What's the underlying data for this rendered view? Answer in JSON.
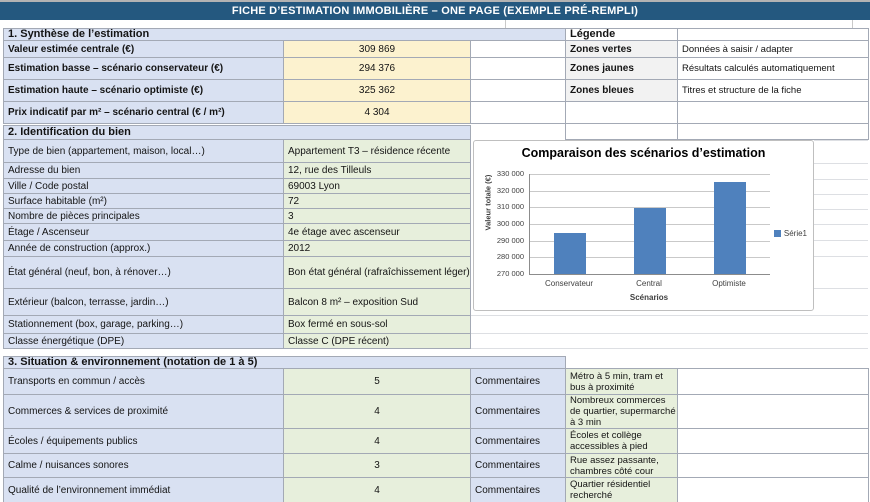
{
  "title_bar": "FICHE D’ESTIMATION IMMOBILIÈRE – ONE PAGE (EXEMPLE PRÉ-REMPLI)",
  "colors": {
    "title_bar_bg": "#24587F",
    "blue_zone": "#D9E1F2",
    "yellow_zone": "#FCF2CF",
    "green_zone": "#E7EFDC",
    "legend_cell": "#F2F2F2",
    "bar_fill": "#4F81BD"
  },
  "legend": {
    "title": "Légende",
    "items": [
      {
        "label": "Zones vertes",
        "desc": "Données à saisir / adapter"
      },
      {
        "label": "Zones jaunes",
        "desc": "Résultats calculés automatiquement"
      },
      {
        "label": "Zones bleues",
        "desc": "Titres et structure de la fiche"
      }
    ]
  },
  "synthese": {
    "header": "1. Synthèse de l’estimation",
    "rows": [
      {
        "label": "Valeur estimée centrale (€)",
        "value": "309 869"
      },
      {
        "label": "Estimation basse – scénario conservateur (€)",
        "value": "294 376"
      },
      {
        "label": "Estimation haute – scénario optimiste (€)",
        "value": "325 362"
      },
      {
        "label": "Prix indicatif par m² – scénario central (€ / m²)",
        "value": "4 304"
      }
    ]
  },
  "identification": {
    "header": "2. Identification du bien",
    "rows": [
      {
        "label": "Type de bien (appartement, maison, local…)",
        "value": "Appartement T3 – résidence récente"
      },
      {
        "label": "Adresse du bien",
        "value": "12, rue des Tilleuls"
      },
      {
        "label": "Ville / Code postal",
        "value": "69003 Lyon"
      },
      {
        "label": "Surface habitable (m²)",
        "value": "72"
      },
      {
        "label": "Nombre de pièces principales",
        "value": "3"
      },
      {
        "label": "Étage / Ascenseur",
        "value": "4e étage avec ascenseur"
      },
      {
        "label": "Année de construction (approx.)",
        "value": "2012"
      },
      {
        "label": "État général (neuf, bon, à rénover…)",
        "value": "Bon état général (rafraîchissement léger)"
      },
      {
        "label": "Extérieur (balcon, terrasse, jardin…)",
        "value": "Balcon 8 m² – exposition Sud"
      },
      {
        "label": "Stationnement (box, garage, parking…)",
        "value": "Box fermé en sous-sol"
      },
      {
        "label": "Classe énergétique (DPE)",
        "value": "Classe C (DPE récent)"
      }
    ]
  },
  "situation": {
    "header": "3. Situation & environnement (notation de 1 à 5)",
    "comment_label": "Commentaires",
    "rows": [
      {
        "label": "Transports en commun / accès",
        "rating": "5",
        "comment": "Métro à 5 min, tram et bus à proximité"
      },
      {
        "label": "Commerces & services de proximité",
        "rating": "4",
        "comment": "Nombreux commerces de quartier, supermarché à 3 min"
      },
      {
        "label": "Écoles / équipements publics",
        "rating": "4",
        "comment": "Écoles et collège accessibles à pied"
      },
      {
        "label": "Calme / nuisances sonores",
        "rating": "3",
        "comment": "Rue assez passante, chambres côté cour"
      },
      {
        "label": "Qualité de l’environnement immédiat",
        "rating": "4",
        "comment": "Quartier résidentiel recherché"
      }
    ]
  },
  "chart_data": {
    "type": "bar",
    "title": "Comparaison des scénarios d’estimation",
    "categories": [
      "Conservateur",
      "Central",
      "Optimiste"
    ],
    "series": [
      {
        "name": "Série1",
        "values": [
          294376,
          309869,
          325362
        ]
      }
    ],
    "xlabel": "Scénarios",
    "ylabel": "Valeur totale (€)",
    "ylim": [
      270000,
      330000
    ],
    "ytick_step": 10000,
    "grid": true,
    "legend_position": "right",
    "bar_color": "#4F81BD"
  }
}
